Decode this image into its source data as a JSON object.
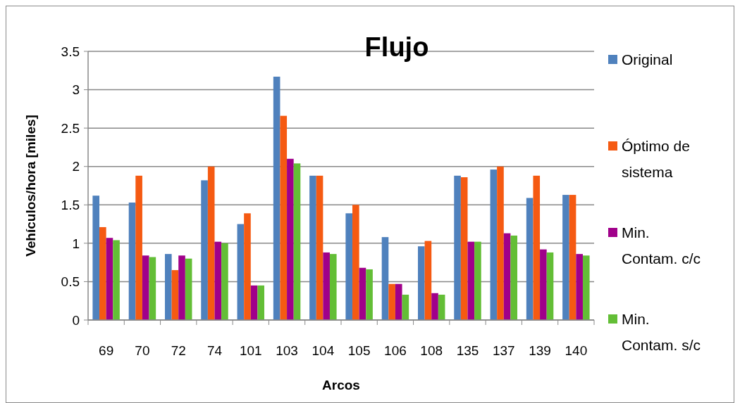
{
  "chart_data": {
    "type": "bar",
    "title": "Flujo",
    "xlabel": "Arcos",
    "ylabel": "Vehículos/hora [miles]",
    "categories": [
      "69",
      "70",
      "72",
      "74",
      "101",
      "103",
      "104",
      "105",
      "106",
      "108",
      "135",
      "137",
      "139",
      "140"
    ],
    "series": [
      {
        "name": "Original",
        "color": "#4f81bd",
        "values": [
          1.62,
          1.53,
          0.86,
          1.82,
          1.25,
          3.17,
          1.88,
          1.39,
          1.08,
          0.96,
          1.88,
          1.96,
          1.59,
          1.63
        ]
      },
      {
        "name": "Óptimo de sistema",
        "color": "#f55a12",
        "values": [
          1.21,
          1.88,
          0.65,
          2.0,
          1.39,
          2.66,
          1.88,
          1.5,
          0.47,
          1.03,
          1.86,
          2.0,
          1.88,
          1.63
        ]
      },
      {
        "name": "Min. Contam. c/c",
        "color": "#a0008a",
        "values": [
          1.07,
          0.84,
          0.84,
          1.02,
          0.45,
          2.1,
          0.88,
          0.68,
          0.47,
          0.35,
          1.02,
          1.13,
          0.92,
          0.86
        ]
      },
      {
        "name": "Min. Contam. s/c",
        "color": "#63be36",
        "values": [
          1.04,
          0.82,
          0.8,
          1.0,
          0.45,
          2.04,
          0.86,
          0.66,
          0.33,
          0.33,
          1.02,
          1.1,
          0.88,
          0.84
        ]
      }
    ],
    "ylim": [
      0,
      3.5
    ],
    "yticks": [
      0,
      0.5,
      1,
      1.5,
      2,
      2.5,
      3,
      3.5
    ],
    "grid": "y",
    "legend": "right"
  }
}
